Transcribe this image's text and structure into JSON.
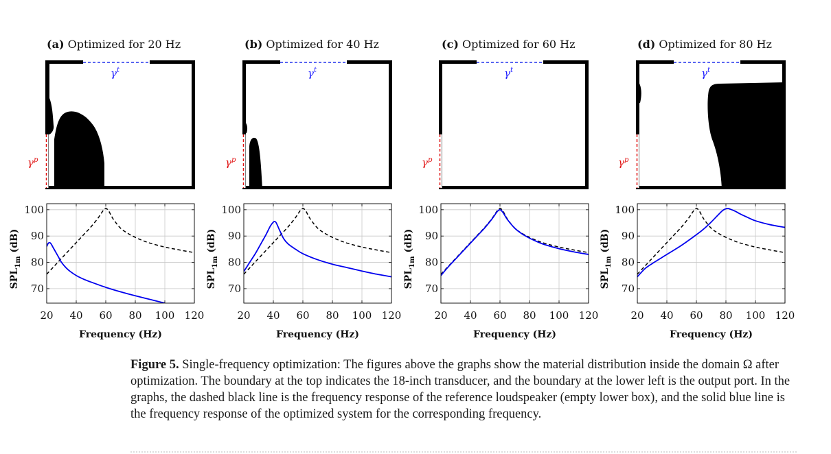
{
  "panels": [
    {
      "label": "(a)",
      "title": "Optimized for 20 Hz",
      "gamma_t": "γ",
      "gamma_t_sup": "t",
      "gamma_p": "γ",
      "gamma_p_sup": "p"
    },
    {
      "label": "(b)",
      "title": "Optimized for 40 Hz",
      "gamma_t": "γ",
      "gamma_t_sup": "t",
      "gamma_p": "γ",
      "gamma_p_sup": "p"
    },
    {
      "label": "(c)",
      "title": "Optimized for 60 Hz",
      "gamma_t": "γ",
      "gamma_t_sup": "t",
      "gamma_p": "γ",
      "gamma_p_sup": "p"
    },
    {
      "label": "(d)",
      "title": "Optimized for 80 Hz",
      "gamma_t": "γ",
      "gamma_t_sup": "t",
      "gamma_p": "γ",
      "gamma_p_sup": "p"
    }
  ],
  "colors": {
    "optimized": "#0000ee",
    "reference": "#000000",
    "gamma_t": "#1a1aff",
    "gamma_p": "#e01010"
  },
  "chart_data": [
    {
      "type": "line",
      "title": "Optimized for 20 Hz",
      "xlabel": "Frequency (Hz)",
      "ylabel": "SPL1m (dB)",
      "ylabel_main": "SPL",
      "ylabel_sub": "1m",
      "ylabel_unit": " (dB)",
      "xlim": [
        20,
        120
      ],
      "ylim": [
        64.5,
        102.3
      ],
      "xticks": [
        20,
        40,
        60,
        80,
        100,
        120
      ],
      "yticks": [
        70,
        80,
        90,
        100
      ],
      "grid": true,
      "series": [
        {
          "name": "reference",
          "style": "dashed",
          "x": [
            20,
            25,
            30,
            35,
            40,
            45,
            50,
            55,
            58,
            60,
            62,
            65,
            70,
            75,
            80,
            85,
            90,
            100,
            110,
            120
          ],
          "y": [
            75.5,
            78.5,
            81.5,
            84.5,
            87.5,
            90.5,
            93.5,
            97,
            99.5,
            100.5,
            99.5,
            96.5,
            93,
            91,
            89.5,
            88.3,
            87.3,
            85.8,
            84.7,
            83.7
          ]
        },
        {
          "name": "optimized",
          "style": "solid",
          "x": [
            20,
            21,
            22,
            23,
            24,
            26,
            28,
            30,
            33,
            36,
            40,
            45,
            50,
            60,
            70,
            80,
            90,
            100
          ],
          "y": [
            86,
            87.2,
            87.5,
            87,
            86,
            84,
            82,
            80,
            78,
            76.5,
            75,
            73.6,
            72.5,
            70.5,
            68.8,
            67.3,
            65.9,
            64.5
          ]
        }
      ]
    },
    {
      "type": "line",
      "title": "Optimized for 40 Hz",
      "xlabel": "Frequency (Hz)",
      "ylabel": "SPL1m (dB)",
      "ylabel_main": "SPL",
      "ylabel_sub": "1m",
      "ylabel_unit": " (dB)",
      "xlim": [
        20,
        120
      ],
      "ylim": [
        64.5,
        102.3
      ],
      "xticks": [
        20,
        40,
        60,
        80,
        100,
        120
      ],
      "yticks": [
        70,
        80,
        90,
        100
      ],
      "grid": true,
      "series": [
        {
          "name": "reference",
          "style": "dashed",
          "x": [
            20,
            25,
            30,
            35,
            40,
            45,
            50,
            55,
            58,
            60,
            62,
            65,
            70,
            75,
            80,
            85,
            90,
            100,
            110,
            120
          ],
          "y": [
            75.5,
            78.5,
            81.5,
            84.5,
            87.5,
            90.5,
            93.5,
            97,
            99.5,
            100.5,
            99.5,
            96.5,
            93,
            91,
            89.5,
            88.3,
            87.3,
            85.8,
            84.7,
            83.7
          ]
        },
        {
          "name": "optimized",
          "style": "solid",
          "x": [
            20,
            24,
            28,
            32,
            35,
            38,
            40,
            41,
            42,
            44,
            47,
            50,
            55,
            60,
            70,
            80,
            90,
            100,
            110,
            120
          ],
          "y": [
            76.5,
            80,
            83.5,
            87.5,
            90.5,
            93.8,
            95.3,
            95.5,
            95,
            92.5,
            89,
            87,
            85,
            83.3,
            81,
            79.3,
            78,
            76.7,
            75.5,
            74.5
          ]
        }
      ]
    },
    {
      "type": "line",
      "title": "Optimized for 60 Hz",
      "xlabel": "Frequency (Hz)",
      "ylabel": "SPL1m (dB)",
      "ylabel_main": "SPL",
      "ylabel_sub": "1m",
      "ylabel_unit": " (dB)",
      "xlim": [
        20,
        120
      ],
      "ylim": [
        64.5,
        102.3
      ],
      "xticks": [
        20,
        40,
        60,
        80,
        100,
        120
      ],
      "yticks": [
        70,
        80,
        90,
        100
      ],
      "grid": true,
      "series": [
        {
          "name": "reference",
          "style": "dashed",
          "x": [
            20,
            25,
            30,
            35,
            40,
            45,
            50,
            55,
            58,
            60,
            62,
            65,
            70,
            75,
            80,
            85,
            90,
            100,
            110,
            120
          ],
          "y": [
            75.5,
            78.5,
            81.5,
            84.5,
            87.5,
            90.5,
            93.5,
            97,
            99.5,
            100.5,
            99.5,
            96.5,
            93,
            91,
            89.5,
            88.3,
            87.3,
            85.8,
            84.7,
            83.7
          ]
        },
        {
          "name": "optimized",
          "style": "solid",
          "x": [
            20,
            25,
            30,
            35,
            40,
            45,
            50,
            55,
            58,
            60,
            62,
            65,
            70,
            75,
            80,
            85,
            90,
            100,
            110,
            120
          ],
          "y": [
            75,
            78.3,
            81.3,
            84.3,
            87.3,
            90.3,
            93.3,
            96.8,
            99.2,
            100,
            99,
            96.3,
            93,
            90.8,
            89.2,
            87.9,
            86.8,
            85.2,
            84,
            83
          ]
        }
      ]
    },
    {
      "type": "line",
      "title": "Optimized for 80 Hz",
      "xlabel": "Frequency (Hz)",
      "ylabel": "SPL1m (dB)",
      "ylabel_main": "SPL",
      "ylabel_sub": "1m",
      "ylabel_unit": " (dB)",
      "xlim": [
        20,
        120
      ],
      "ylim": [
        64.5,
        102.3
      ],
      "xticks": [
        20,
        40,
        60,
        80,
        100,
        120
      ],
      "yticks": [
        70,
        80,
        90,
        100
      ],
      "grid": true,
      "series": [
        {
          "name": "reference",
          "style": "dashed",
          "x": [
            20,
            25,
            30,
            35,
            40,
            45,
            50,
            55,
            58,
            60,
            62,
            65,
            70,
            75,
            80,
            85,
            90,
            100,
            110,
            120
          ],
          "y": [
            75.5,
            78.5,
            81.5,
            84.5,
            87.5,
            90.5,
            93.5,
            97,
            99.5,
            100.5,
            99.5,
            96.5,
            93,
            91,
            89.5,
            88.3,
            87.3,
            85.8,
            84.7,
            83.7
          ]
        },
        {
          "name": "optimized",
          "style": "solid",
          "x": [
            20,
            25,
            30,
            40,
            50,
            60,
            65,
            70,
            75,
            78,
            81,
            83,
            86,
            90,
            95,
            100,
            110,
            120
          ],
          "y": [
            74.5,
            77.5,
            79.5,
            83,
            86.5,
            90.5,
            92.7,
            95.3,
            98.2,
            99.8,
            100.5,
            100.2,
            99.5,
            98.3,
            97,
            95.8,
            94.3,
            93.3
          ]
        }
      ]
    }
  ],
  "caption": {
    "label": "Figure 5.",
    "text": " Single-frequency optimization: The figures above the graphs show the material distribution inside the domain Ω after optimization. The boundary at the top indicates the 18-inch transducer, and the boundary at the lower left is the output port. In the graphs, the dashed black line is the frequency response of the reference loudspeaker (empty lower box), and the solid blue line is the frequency response of the optimized system for the corresponding frequency."
  }
}
